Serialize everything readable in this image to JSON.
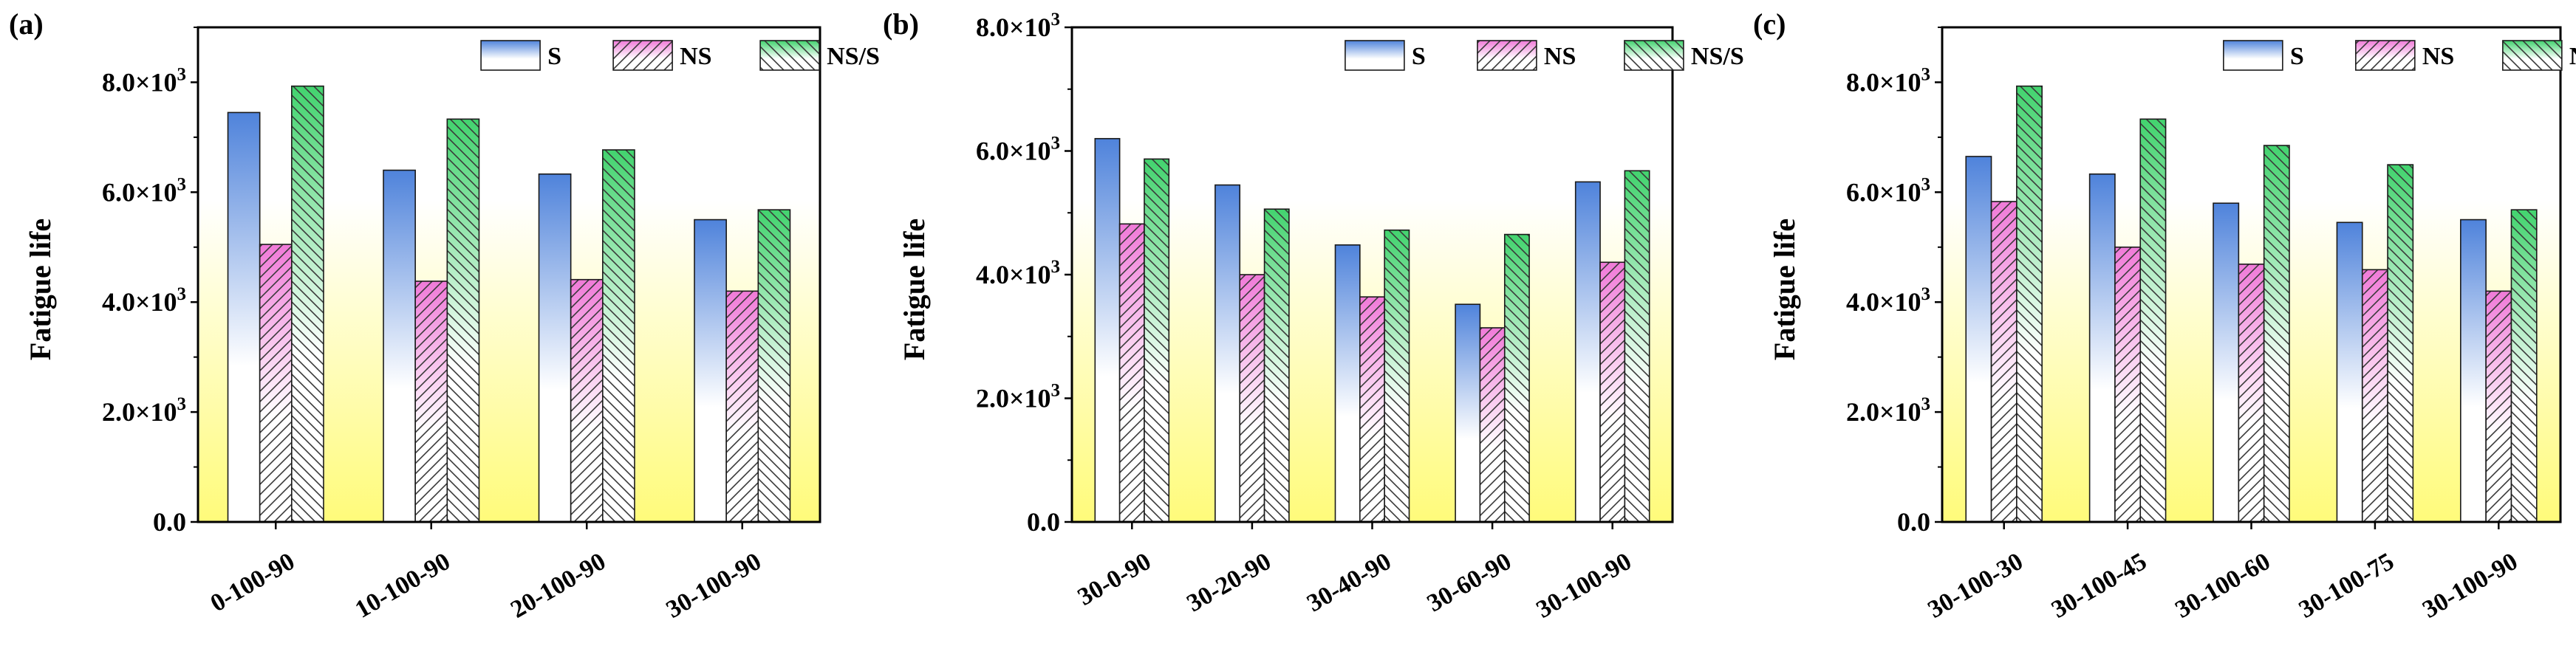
{
  "figure": {
    "yunit": "×10",
    "superscript": "3",
    "legend": {
      "s": "S",
      "ns": "NS",
      "nss": "NS/S"
    }
  },
  "colors": {
    "s_top": "#4f83db",
    "s_bottom": "#ffffff",
    "ns_top": "#f07ad8",
    "ns_bottom": "#ffffff",
    "nss_top": "#42d36e",
    "nss_bottom": "#ffffff",
    "bg_top": "#ffffff",
    "bg_bottom": "#fffb7a"
  },
  "chart_data": [
    {
      "type": "bar",
      "panel": "(a)",
      "ylabel": "Fatigue life",
      "ylim": [
        0,
        9000
      ],
      "yticks": [
        0,
        2000,
        4000,
        6000,
        8000
      ],
      "ytick_labels": [
        "0.0",
        "2.0",
        "4.0",
        "6.0",
        "8.0"
      ],
      "categories": [
        "0-100-90",
        "10-100-90",
        "20-100-90",
        "30-100-90"
      ],
      "series": [
        {
          "name": "S",
          "values": [
            7450,
            6400,
            6330,
            5500
          ]
        },
        {
          "name": "NS",
          "values": [
            5050,
            4380,
            4410,
            4200
          ]
        },
        {
          "name": "NS/S",
          "values": [
            7930,
            7330,
            6770,
            5680
          ]
        }
      ]
    },
    {
      "type": "bar",
      "panel": "(b)",
      "ylabel": "Fatigue life",
      "ylim": [
        0,
        8000
      ],
      "yticks": [
        0,
        2000,
        4000,
        6000,
        8000
      ],
      "ytick_labels": [
        "0.0",
        "2.0",
        "4.0",
        "6.0",
        "8.0"
      ],
      "categories": [
        "30-0-90",
        "30-20-90",
        "30-40-90",
        "30-60-90",
        "30-100-90"
      ],
      "series": [
        {
          "name": "S",
          "values": [
            6200,
            5450,
            4480,
            3520,
            5500
          ]
        },
        {
          "name": "NS",
          "values": [
            4820,
            4000,
            3640,
            3140,
            4200
          ]
        },
        {
          "name": "NS/S",
          "values": [
            5870,
            5060,
            4720,
            4650,
            5680
          ]
        }
      ]
    },
    {
      "type": "bar",
      "panel": "(c)",
      "ylabel": "Fatigue life",
      "ylim": [
        0,
        9000
      ],
      "yticks": [
        0,
        2000,
        4000,
        6000,
        8000
      ],
      "ytick_labels": [
        "0.0",
        "2.0",
        "4.0",
        "6.0",
        "8.0"
      ],
      "categories": [
        "30-100-30",
        "30-100-45",
        "30-100-60",
        "30-100-75",
        "30-100-90"
      ],
      "series": [
        {
          "name": "S",
          "values": [
            6650,
            6330,
            5800,
            5450,
            5500
          ]
        },
        {
          "name": "NS",
          "values": [
            5830,
            5000,
            4690,
            4590,
            4200
          ]
        },
        {
          "name": "NS/S",
          "values": [
            7930,
            7330,
            6850,
            6500,
            5680
          ]
        }
      ]
    }
  ]
}
